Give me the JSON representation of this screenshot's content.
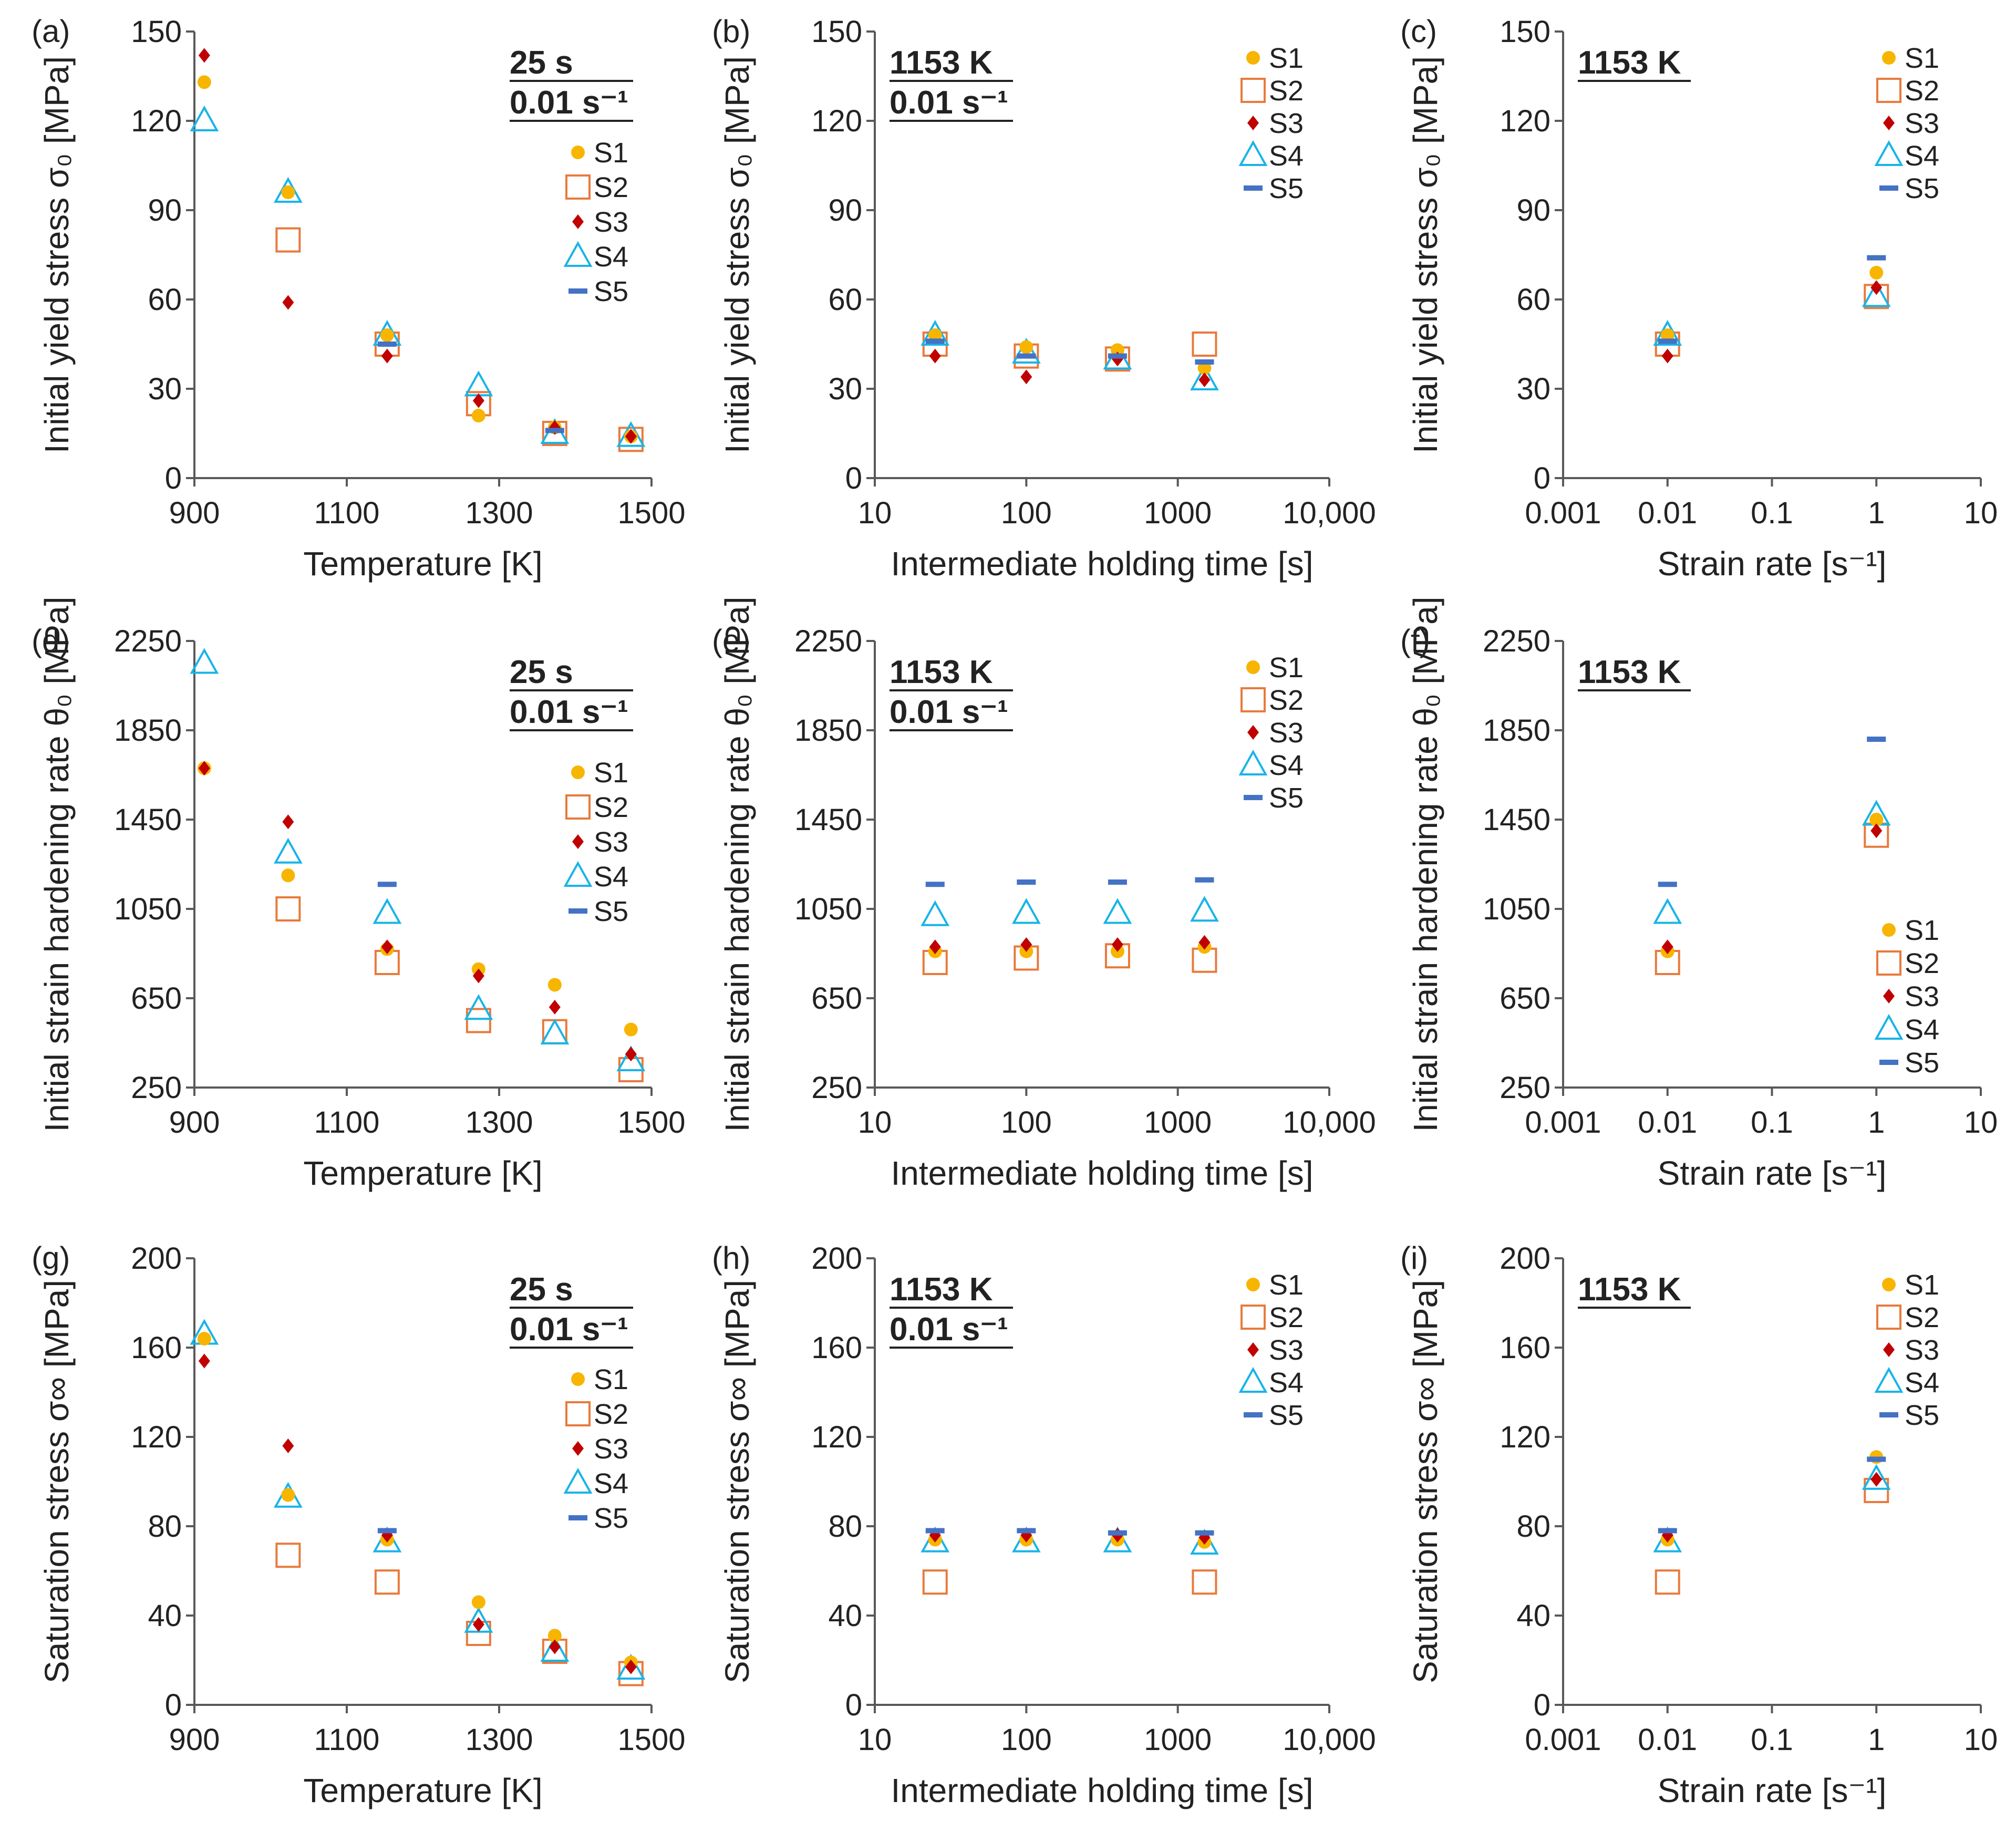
{
  "colors": {
    "S1": "#f7b500",
    "S2": "#e87a3c",
    "S3": "#c00000",
    "S4": "#18b4e8",
    "S5": "#4472c4",
    "axis": "#595959"
  },
  "chart_data": [
    {
      "id": "a",
      "type": "scatter",
      "panel_label": "(a)",
      "condition": [
        "25 s",
        "0.01 s⁻¹"
      ],
      "xlabel": "Temperature [K]",
      "ylabel": "Initial yield stress σ₀ [MPa]",
      "xscale": "linear",
      "xlim": [
        900,
        1500
      ],
      "xticks": [
        900,
        1100,
        1300,
        1500
      ],
      "xtick_labels": [
        "900",
        "1100",
        "1300",
        "1500"
      ],
      "ylim": [
        0,
        150
      ],
      "yticks": [
        0,
        30,
        60,
        90,
        120,
        150
      ],
      "ytick_labels": [
        "0",
        "30",
        "60",
        "90",
        "120",
        "150"
      ],
      "legend": {
        "position": "right-middle",
        "entries": [
          "S1",
          "S2",
          "S3",
          "S4",
          "S5"
        ]
      },
      "series": [
        {
          "name": "S1",
          "x": [
            913,
            1023,
            1153,
            1273,
            1373,
            1473
          ],
          "y": [
            133,
            96,
            48,
            21,
            17,
            14
          ]
        },
        {
          "name": "S2",
          "x": [
            1023,
            1153,
            1273,
            1373,
            1473
          ],
          "y": [
            80,
            45,
            25,
            15,
            13
          ]
        },
        {
          "name": "S3",
          "x": [
            913,
            1023,
            1153,
            1273,
            1373,
            1473
          ],
          "y": [
            142,
            59,
            41,
            26,
            17,
            14
          ]
        },
        {
          "name": "S4",
          "x": [
            913,
            1023,
            1153,
            1273,
            1373,
            1473
          ],
          "y": [
            120,
            96,
            48,
            31,
            15,
            14
          ]
        },
        {
          "name": "S5",
          "x": [
            1153,
            1373
          ],
          "y": [
            45,
            16
          ]
        }
      ]
    },
    {
      "id": "b",
      "type": "scatter",
      "panel_label": "(b)",
      "condition": [
        "1153 K",
        "0.01 s⁻¹"
      ],
      "xlabel": "Intermediate holding time [s]",
      "ylabel": "Initial yield stress σ₀ [MPa]",
      "xscale": "log",
      "xlim": [
        10,
        10000
      ],
      "xticks": [
        10,
        100,
        1000,
        10000
      ],
      "xtick_labels": [
        "10",
        "100",
        "1000",
        "10,000"
      ],
      "ylim": [
        0,
        150
      ],
      "yticks": [
        0,
        30,
        60,
        90,
        120,
        150
      ],
      "ytick_labels": [
        "0",
        "30",
        "60",
        "90",
        "120",
        "150"
      ],
      "legend": {
        "position": "top-right",
        "entries": [
          "S1",
          "S2",
          "S3",
          "S4",
          "S5"
        ]
      },
      "series": [
        {
          "name": "S1",
          "x": [
            25,
            100,
            400,
            1500
          ],
          "y": [
            48,
            44,
            43,
            37
          ]
        },
        {
          "name": "S2",
          "x": [
            25,
            100,
            400,
            1500
          ],
          "y": [
            45,
            41,
            40,
            45
          ]
        },
        {
          "name": "S3",
          "x": [
            25,
            100,
            400,
            1500
          ],
          "y": [
            41,
            34,
            40,
            33
          ]
        },
        {
          "name": "S4",
          "x": [
            25,
            100,
            400,
            1500
          ],
          "y": [
            48,
            42,
            40,
            33
          ]
        },
        {
          "name": "S5",
          "x": [
            25,
            100,
            400,
            1500
          ],
          "y": [
            46,
            41,
            41,
            39
          ]
        }
      ]
    },
    {
      "id": "c",
      "type": "scatter",
      "panel_label": "(c)",
      "condition": [
        "1153 K"
      ],
      "xlabel": "Strain rate [s⁻¹]",
      "ylabel": "Initial yield stress σ₀ [MPa]",
      "xscale": "log",
      "xlim": [
        0.001,
        10
      ],
      "xticks": [
        0.001,
        0.01,
        0.1,
        1,
        10
      ],
      "xtick_labels": [
        "0.001",
        "0.01",
        "0.1",
        "1",
        "10"
      ],
      "ylim": [
        0,
        150
      ],
      "yticks": [
        0,
        30,
        60,
        90,
        120,
        150
      ],
      "ytick_labels": [
        "0",
        "30",
        "60",
        "90",
        "120",
        "150"
      ],
      "legend": {
        "position": "top-right",
        "entries": [
          "S1",
          "S2",
          "S3",
          "S4",
          "S5"
        ]
      },
      "series": [
        {
          "name": "S1",
          "x": [
            0.01,
            1
          ],
          "y": [
            48,
            69
          ]
        },
        {
          "name": "S2",
          "x": [
            0.01,
            1
          ],
          "y": [
            45,
            61
          ]
        },
        {
          "name": "S3",
          "x": [
            0.01,
            1
          ],
          "y": [
            41,
            64
          ]
        },
        {
          "name": "S4",
          "x": [
            0.01,
            1
          ],
          "y": [
            48,
            61
          ]
        },
        {
          "name": "S5",
          "x": [
            0.01,
            1
          ],
          "y": [
            46,
            74
          ]
        }
      ]
    },
    {
      "id": "d",
      "type": "scatter",
      "panel_label": "(d)",
      "condition": [
        "25 s",
        "0.01 s⁻¹"
      ],
      "xlabel": "Temperature [K]",
      "ylabel": "Initial strain hardening rate θ₀ [MPa]",
      "xscale": "linear",
      "xlim": [
        900,
        1500
      ],
      "xticks": [
        900,
        1100,
        1300,
        1500
      ],
      "xtick_labels": [
        "900",
        "1100",
        "1300",
        "1500"
      ],
      "ylim": [
        250,
        2250
      ],
      "yticks": [
        250,
        650,
        1050,
        1450,
        1850,
        2250
      ],
      "ytick_labels": [
        "250",
        "650",
        "1050",
        "1450",
        "1850",
        "2250"
      ],
      "legend": {
        "position": "right-middle",
        "entries": [
          "S1",
          "S2",
          "S3",
          "S4",
          "S5"
        ]
      },
      "series": [
        {
          "name": "S1",
          "x": [
            913,
            1023,
            1153,
            1273,
            1373,
            1473
          ],
          "y": [
            1680,
            1200,
            870,
            780,
            710,
            510
          ]
        },
        {
          "name": "S2",
          "x": [
            1023,
            1153,
            1273,
            1373,
            1473
          ],
          "y": [
            1050,
            810,
            550,
            500,
            330
          ]
        },
        {
          "name": "S3",
          "x": [
            913,
            1023,
            1153,
            1273,
            1373,
            1473
          ],
          "y": [
            1680,
            1440,
            880,
            750,
            610,
            400
          ]
        },
        {
          "name": "S4",
          "x": [
            913,
            1023,
            1153,
            1273,
            1373,
            1473
          ],
          "y": [
            2150,
            1300,
            1030,
            600,
            490,
            370
          ]
        },
        {
          "name": "S5",
          "x": [
            1153
          ],
          "y": [
            1160
          ]
        }
      ]
    },
    {
      "id": "e",
      "type": "scatter",
      "panel_label": "(e)",
      "condition": [
        "1153 K",
        "0.01 s⁻¹"
      ],
      "xlabel": "Intermediate holding time [s]",
      "ylabel": "Initial strain hardening rate θ₀ [MPa]",
      "xscale": "log",
      "xlim": [
        10,
        10000
      ],
      "xticks": [
        10,
        100,
        1000,
        10000
      ],
      "xtick_labels": [
        "10",
        "100",
        "1000",
        "10,000"
      ],
      "ylim": [
        250,
        2250
      ],
      "yticks": [
        250,
        650,
        1050,
        1450,
        1850,
        2250
      ],
      "ytick_labels": [
        "250",
        "650",
        "1050",
        "1450",
        "1850",
        "2250"
      ],
      "legend": {
        "position": "top-right",
        "entries": [
          "S1",
          "S2",
          "S3",
          "S4",
          "S5"
        ]
      },
      "series": [
        {
          "name": "S1",
          "x": [
            25,
            100,
            400,
            1500
          ],
          "y": [
            860,
            860,
            860,
            880
          ]
        },
        {
          "name": "S2",
          "x": [
            25,
            100,
            400,
            1500
          ],
          "y": [
            810,
            830,
            840,
            820
          ]
        },
        {
          "name": "S3",
          "x": [
            25,
            100,
            400,
            1500
          ],
          "y": [
            880,
            890,
            890,
            900
          ]
        },
        {
          "name": "S4",
          "x": [
            25,
            100,
            400,
            1500
          ],
          "y": [
            1020,
            1030,
            1030,
            1040
          ]
        },
        {
          "name": "S5",
          "x": [
            25,
            100,
            400,
            1500
          ],
          "y": [
            1160,
            1170,
            1170,
            1180
          ]
        }
      ]
    },
    {
      "id": "f",
      "type": "scatter",
      "panel_label": "(f)",
      "condition": [
        "1153 K"
      ],
      "xlabel": "Strain rate [s⁻¹]",
      "ylabel": "Initial strain hardening rate θ₀ [MPa]",
      "xscale": "log",
      "xlim": [
        0.001,
        10
      ],
      "xticks": [
        0.001,
        0.01,
        0.1,
        1,
        10
      ],
      "xtick_labels": [
        "0.001",
        "0.01",
        "0.1",
        "1",
        "10"
      ],
      "ylim": [
        250,
        2250
      ],
      "yticks": [
        250,
        650,
        1050,
        1450,
        1850,
        2250
      ],
      "ytick_labels": [
        "250",
        "650",
        "1050",
        "1450",
        "1850",
        "2250"
      ],
      "legend": {
        "position": "bottom-right",
        "entries": [
          "S1",
          "S2",
          "S3",
          "S4",
          "S5"
        ]
      },
      "series": [
        {
          "name": "S1",
          "x": [
            0.01,
            1
          ],
          "y": [
            860,
            1450
          ]
        },
        {
          "name": "S2",
          "x": [
            0.01,
            1
          ],
          "y": [
            810,
            1380
          ]
        },
        {
          "name": "S3",
          "x": [
            0.01,
            1
          ],
          "y": [
            880,
            1400
          ]
        },
        {
          "name": "S4",
          "x": [
            0.01,
            1
          ],
          "y": [
            1030,
            1470
          ]
        },
        {
          "name": "S5",
          "x": [
            0.01,
            1
          ],
          "y": [
            1160,
            1810
          ]
        }
      ]
    },
    {
      "id": "g",
      "type": "scatter",
      "panel_label": "(g)",
      "condition": [
        "25 s",
        "0.01 s⁻¹"
      ],
      "xlabel": "Temperature [K]",
      "ylabel": "Saturation stress σ∞ [MPa]",
      "xscale": "linear",
      "xlim": [
        900,
        1500
      ],
      "xticks": [
        900,
        1100,
        1300,
        1500
      ],
      "xtick_labels": [
        "900",
        "1100",
        "1300",
        "1500"
      ],
      "ylim": [
        0,
        200
      ],
      "yticks": [
        0,
        40,
        80,
        120,
        160,
        200
      ],
      "ytick_labels": [
        "0",
        "40",
        "80",
        "120",
        "160",
        "200"
      ],
      "legend": {
        "position": "right-middle",
        "entries": [
          "S1",
          "S2",
          "S3",
          "S4",
          "S5"
        ]
      },
      "series": [
        {
          "name": "S1",
          "x": [
            913,
            1023,
            1153,
            1273,
            1373,
            1473
          ],
          "y": [
            164,
            94,
            74,
            46,
            31,
            19
          ]
        },
        {
          "name": "S2",
          "x": [
            1023,
            1153,
            1273,
            1373,
            1473
          ],
          "y": [
            67,
            55,
            32,
            24,
            14
          ]
        },
        {
          "name": "S3",
          "x": [
            913,
            1023,
            1153,
            1273,
            1373,
            1473
          ],
          "y": [
            154,
            116,
            76,
            36,
            26,
            17
          ]
        },
        {
          "name": "S4",
          "x": [
            913,
            1023,
            1153,
            1273,
            1373,
            1473
          ],
          "y": [
            166,
            93,
            73,
            37,
            24,
            16
          ]
        },
        {
          "name": "S5",
          "x": [
            1153
          ],
          "y": [
            78
          ]
        }
      ]
    },
    {
      "id": "h",
      "type": "scatter",
      "panel_label": "(h)",
      "condition": [
        "1153 K",
        "0.01 s⁻¹"
      ],
      "xlabel": "Intermediate holding time [s]",
      "ylabel": "Saturation stress σ∞ [MPa]",
      "xscale": "log",
      "xlim": [
        10,
        10000
      ],
      "xticks": [
        10,
        100,
        1000,
        10000
      ],
      "xtick_labels": [
        "10",
        "100",
        "1000",
        "10,000"
      ],
      "ylim": [
        0,
        200
      ],
      "yticks": [
        0,
        40,
        80,
        120,
        160,
        200
      ],
      "ytick_labels": [
        "0",
        "40",
        "80",
        "120",
        "160",
        "200"
      ],
      "legend": {
        "position": "top-right",
        "entries": [
          "S1",
          "S2",
          "S3",
          "S4",
          "S5"
        ]
      },
      "series": [
        {
          "name": "S1",
          "x": [
            25,
            100,
            400,
            1500
          ],
          "y": [
            74,
            74,
            74,
            73
          ]
        },
        {
          "name": "S2",
          "x": [
            25,
            100,
            400,
            1500
          ],
          "y": [
            55,
            null,
            null,
            55
          ]
        },
        {
          "name": "S3",
          "x": [
            25,
            100,
            400,
            1500
          ],
          "y": [
            76,
            76,
            76,
            75
          ]
        },
        {
          "name": "S4",
          "x": [
            25,
            100,
            400,
            1500
          ],
          "y": [
            73,
            73,
            73,
            72
          ]
        },
        {
          "name": "S5",
          "x": [
            25,
            100,
            400,
            1500
          ],
          "y": [
            78,
            78,
            77,
            77
          ]
        }
      ]
    },
    {
      "id": "i",
      "type": "scatter",
      "panel_label": "(i)",
      "condition": [
        "1153 K"
      ],
      "xlabel": "Strain rate [s⁻¹]",
      "ylabel": "Saturation stress σ∞ [MPa]",
      "xscale": "log",
      "xlim": [
        0.001,
        10
      ],
      "xticks": [
        0.001,
        0.01,
        0.1,
        1,
        10
      ],
      "xtick_labels": [
        "0.001",
        "0.01",
        "0.1",
        "1",
        "10"
      ],
      "ylim": [
        0,
        200
      ],
      "yticks": [
        0,
        40,
        80,
        120,
        160,
        200
      ],
      "ytick_labels": [
        "0",
        "40",
        "80",
        "120",
        "160",
        "200"
      ],
      "legend": {
        "position": "top-right",
        "entries": [
          "S1",
          "S2",
          "S3",
          "S4",
          "S5"
        ]
      },
      "series": [
        {
          "name": "S1",
          "x": [
            0.01,
            1
          ],
          "y": [
            74,
            111
          ]
        },
        {
          "name": "S2",
          "x": [
            0.01,
            1
          ],
          "y": [
            55,
            96
          ]
        },
        {
          "name": "S3",
          "x": [
            0.01,
            1
          ],
          "y": [
            76,
            101
          ]
        },
        {
          "name": "S4",
          "x": [
            0.01,
            1
          ],
          "y": [
            73,
            101
          ]
        },
        {
          "name": "S5",
          "x": [
            0.01,
            1
          ],
          "y": [
            78,
            110
          ]
        }
      ]
    }
  ]
}
